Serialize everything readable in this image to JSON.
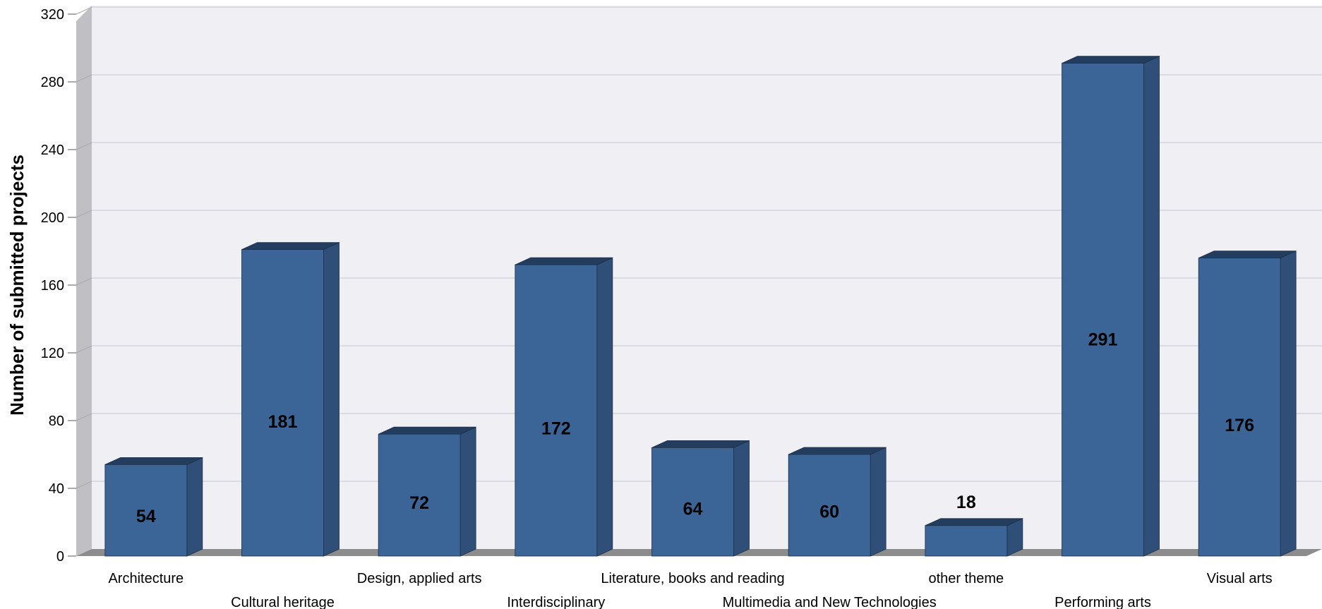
{
  "chart_data": {
    "type": "bar",
    "title": "",
    "xlabel": "",
    "ylabel": "Number of submitted projects",
    "ylim": [
      0,
      320
    ],
    "yticks": [
      0,
      40,
      80,
      120,
      160,
      200,
      240,
      280,
      320
    ],
    "categories": [
      "Architecture",
      "Cultural heritage",
      "Design, applied arts",
      "Interdisciplinary",
      "Literature, books and reading",
      "Multimedia and New Technologies",
      "other theme",
      "Performing arts",
      "Visual arts"
    ],
    "values": [
      54,
      181,
      72,
      172,
      64,
      60,
      18,
      291,
      176
    ],
    "grid": true,
    "style": "3d",
    "colors": {
      "bar_front": "#3b6596",
      "bar_side": "#2f4f78",
      "bar_top": "#233d5f",
      "plot_background": "#efeff4",
      "grid": "#cfcfd6",
      "left_wall": "#c0c0c4",
      "floor": "#8c8c8c"
    }
  }
}
